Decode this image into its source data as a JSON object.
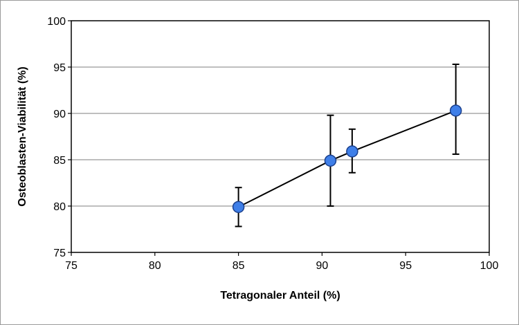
{
  "chart_data": {
    "type": "scatter",
    "title": "",
    "xlabel": "Tetragonaler Anteil (%)",
    "ylabel": "Osteoblasten-Viabilität (%)",
    "xlim": [
      75,
      100
    ],
    "ylim": [
      75,
      100
    ],
    "x_ticks": [
      "75",
      "80",
      "85",
      "90",
      "95",
      "100"
    ],
    "y_ticks": [
      "75",
      "80",
      "85",
      "90",
      "95",
      "100"
    ],
    "grid": "horizontal",
    "legend": "none",
    "trendline": "linear",
    "series": [
      {
        "points": [
          {
            "x": 85.0,
            "y": 79.9,
            "err_low": 77.8,
            "err_high": 82.0
          },
          {
            "x": 90.5,
            "y": 84.9,
            "err_low": 80.0,
            "err_high": 89.8
          },
          {
            "x": 91.8,
            "y": 85.9,
            "err_low": 83.6,
            "err_high": 88.3
          },
          {
            "x": 98.0,
            "y": 90.3,
            "err_low": 85.6,
            "err_high": 95.3
          }
        ]
      }
    ],
    "colors": {
      "marker_fill": "#3f7fe8",
      "marker_stroke": "#1a3f8c",
      "line": "#000000",
      "grid": "#a8a8a8"
    }
  }
}
